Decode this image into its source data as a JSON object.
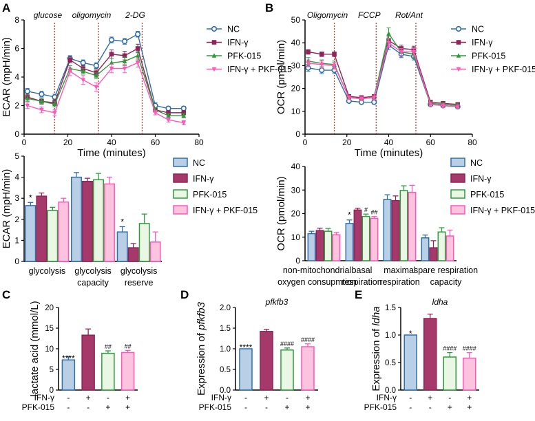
{
  "colors": {
    "nc_stroke": "#2f6ea8",
    "nc_fill": "#b8cfe6",
    "ifn_stroke": "#8e2457",
    "ifn_fill": "#a53a6a",
    "pfk_stroke": "#2d9a3c",
    "pfk_fill": "#e9f7e4",
    "combo_stroke": "#ff57b8",
    "combo_fill": "#fcc3de",
    "marker_line": "#c0392b",
    "axis": "#000000"
  },
  "chart_data": [
    {
      "id": "A_top",
      "panel_label": "A",
      "type": "line",
      "title": "",
      "xlabel": "Time (minutes)",
      "ylabel": "ECAR (mpH/min)",
      "xlim": [
        0,
        80
      ],
      "ylim": [
        0,
        8
      ],
      "xticks": [
        "0",
        "20",
        "40",
        "60",
        "80"
      ],
      "yticks": [
        "0",
        "2",
        "4",
        "6",
        "8"
      ],
      "injections": [
        {
          "x": 14,
          "label": "glucose"
        },
        {
          "x": 34,
          "label": "oligomycin"
        },
        {
          "x": 54,
          "label": "2-DG"
        }
      ],
      "x": [
        1.5,
        8,
        14,
        21,
        27,
        33,
        40,
        46,
        52,
        60,
        66,
        73
      ],
      "series": [
        {
          "name": "NC",
          "marker": "circle",
          "values": [
            3.0,
            2.8,
            2.6,
            5.3,
            5.0,
            4.8,
            6.6,
            6.5,
            7.0,
            2.0,
            1.8,
            1.8
          ],
          "errors": [
            0.2,
            0.2,
            0.2,
            0.2,
            0.2,
            0.2,
            0.2,
            0.2,
            0.2,
            0.2,
            0.15,
            0.15
          ]
        },
        {
          "name": "IFN-γ",
          "marker": "square",
          "values": [
            2.6,
            2.3,
            2.2,
            5.2,
            4.6,
            4.3,
            5.6,
            5.5,
            6.0,
            1.7,
            1.5,
            1.5
          ],
          "errors": [
            0.2,
            0.2,
            0.2,
            0.2,
            0.2,
            0.2,
            0.3,
            0.3,
            0.3,
            0.15,
            0.15,
            0.15
          ]
        },
        {
          "name": "PFK-015",
          "marker": "triangle",
          "values": [
            2.5,
            2.3,
            2.1,
            4.6,
            4.4,
            4.1,
            5.0,
            5.1,
            5.5,
            1.7,
            1.3,
            1.3
          ],
          "errors": [
            0.2,
            0.2,
            0.2,
            0.2,
            0.2,
            0.2,
            0.3,
            0.3,
            0.3,
            0.15,
            0.15,
            0.15
          ]
        },
        {
          "name": "IFN-γ + PKF-015",
          "marker": "triangle-down",
          "values": [
            2.0,
            1.7,
            1.5,
            4.4,
            3.8,
            3.3,
            4.6,
            4.6,
            5.0,
            1.5,
            1.0,
            0.8
          ],
          "errors": [
            0.2,
            0.2,
            0.2,
            0.3,
            0.3,
            0.3,
            0.3,
            0.3,
            0.3,
            0.15,
            0.15,
            0.15
          ]
        }
      ]
    },
    {
      "id": "B_top",
      "panel_label": "B",
      "type": "line",
      "title": "",
      "xlabel": "Time (minutes)",
      "ylabel": "OCR (pmol/min)",
      "xlim": [
        0,
        80
      ],
      "ylim": [
        0,
        50
      ],
      "xticks": [
        "0",
        "20",
        "40",
        "60",
        "80"
      ],
      "yticks": [
        "0",
        "10",
        "20",
        "30",
        "40",
        "50"
      ],
      "injections": [
        {
          "x": 14,
          "label": "Oligomycin"
        },
        {
          "x": 34,
          "label": "FCCP"
        },
        {
          "x": 53,
          "label": "Rot/Ant"
        }
      ],
      "x": [
        1.5,
        8,
        14,
        21,
        27,
        33,
        40,
        46,
        52,
        60,
        66,
        73
      ],
      "series": [
        {
          "name": "NC",
          "marker": "circle",
          "values": [
            29,
            28,
            28,
            14.5,
            14,
            14,
            39,
            35,
            34,
            13,
            12.5,
            12
          ],
          "errors": [
            1.5,
            1.5,
            1.5,
            0.8,
            0.8,
            0.8,
            2,
            1.5,
            1.5,
            0.8,
            0.8,
            0.8
          ]
        },
        {
          "name": "IFN-γ",
          "marker": "square",
          "values": [
            36,
            35,
            35,
            16.5,
            16,
            16.5,
            41,
            37.5,
            37,
            14,
            13.5,
            13
          ],
          "errors": [
            1,
            1,
            1,
            0.8,
            0.8,
            0.8,
            2,
            1.5,
            1.5,
            0.8,
            0.8,
            0.8
          ]
        },
        {
          "name": "PFK-015",
          "marker": "triangle",
          "values": [
            32,
            31,
            30.5,
            16,
            15.5,
            16,
            44,
            36,
            35,
            13.5,
            13,
            12.5
          ],
          "errors": [
            1.5,
            1.5,
            1.5,
            0.8,
            0.8,
            0.8,
            2.5,
            1.5,
            1.5,
            0.8,
            0.8,
            0.8
          ]
        },
        {
          "name": "IFN-γ + PKF-015",
          "marker": "triangle-down",
          "values": [
            31,
            30.5,
            30,
            16,
            15.5,
            16,
            40,
            36,
            36,
            13,
            12.5,
            12
          ],
          "errors": [
            1.5,
            1.5,
            1.5,
            0.8,
            0.8,
            0.8,
            2,
            1.5,
            1.5,
            0.8,
            0.8,
            0.8
          ]
        }
      ]
    },
    {
      "id": "A_bottom",
      "type": "bar",
      "title": "",
      "xlabel": "",
      "ylabel": "ECAR (mpH/min)",
      "ylim": [
        0,
        5
      ],
      "yticks": [
        "0",
        "1",
        "2",
        "3",
        "4",
        "5"
      ],
      "categories": [
        "glycolysis",
        "glycolysis\ncapacity",
        "glycolysis\nreserve"
      ],
      "series": [
        {
          "name": "NC",
          "values": [
            2.65,
            4.0,
            1.4
          ],
          "errors": [
            0.15,
            0.22,
            0.25
          ],
          "annotations": [
            "*",
            "",
            "*"
          ]
        },
        {
          "name": "IFN-γ",
          "values": [
            3.1,
            3.8,
            0.65
          ],
          "errors": [
            0.15,
            0.15,
            0.2
          ],
          "annotations": [
            "",
            "",
            ""
          ]
        },
        {
          "name": "PFK-015",
          "values": [
            2.42,
            3.88,
            1.8
          ],
          "errors": [
            0.15,
            0.3,
            0.45
          ],
          "annotations": [
            "",
            "",
            ""
          ]
        },
        {
          "name": "IFN-γ + PKF-015",
          "values": [
            2.82,
            3.68,
            0.92
          ],
          "errors": [
            0.18,
            0.32,
            0.48
          ],
          "annotations": [
            "",
            "",
            ""
          ]
        }
      ]
    },
    {
      "id": "B_bottom",
      "type": "bar",
      "title": "",
      "xlabel": "",
      "ylabel": "OCR (pmol/min)",
      "ylim": [
        0,
        40
      ],
      "yticks": [
        "0",
        "10",
        "20",
        "30",
        "40"
      ],
      "categories": [
        "non-mitochondrial\noxygen consupmtion",
        "basal\nrespiration",
        "maximal\nrespiration",
        "spare respiration\ncapacity"
      ],
      "series": [
        {
          "name": "NC",
          "values": [
            11.5,
            15.8,
            26,
            9.7
          ],
          "errors": [
            1,
            1.5,
            2,
            1.2
          ],
          "annotations": [
            "",
            "*",
            "",
            ""
          ]
        },
        {
          "name": "IFN-γ",
          "values": [
            12.8,
            21.5,
            25.5,
            5.5
          ],
          "errors": [
            1,
            0.8,
            2,
            3
          ],
          "annotations": [
            "",
            "",
            "",
            ""
          ]
        },
        {
          "name": "PFK-015",
          "values": [
            12.5,
            18.8,
            29.8,
            12.2
          ],
          "errors": [
            1.2,
            1,
            2,
            1.8
          ],
          "annotations": [
            "",
            "#",
            "",
            ""
          ]
        },
        {
          "name": "IFN-γ + PKF-015",
          "values": [
            11,
            18,
            29,
            10.5
          ],
          "errors": [
            1,
            0.8,
            3,
            2.5
          ],
          "annotations": [
            "",
            "##",
            "",
            ""
          ]
        }
      ]
    },
    {
      "id": "C",
      "panel_label": "C",
      "type": "bar",
      "title": "",
      "xlabel": "",
      "ylabel": "lactate acid (mmol/L)",
      "ylim": [
        0,
        20
      ],
      "yticks": [
        "0",
        "5",
        "10",
        "15",
        "20"
      ],
      "row_labels": [
        "IFN-γ",
        "PFK-015"
      ],
      "conditions": [
        [
          "-",
          "-"
        ],
        [
          "+",
          "-"
        ],
        [
          "-",
          "+"
        ],
        [
          "+",
          "+"
        ]
      ],
      "values": [
        7.3,
        13.3,
        8.9,
        9.1
      ],
      "errors": [
        0.8,
        1.5,
        0.6,
        0.5
      ],
      "annotations": [
        "****",
        "",
        "##",
        "##"
      ]
    },
    {
      "id": "D",
      "panel_label": "D",
      "type": "bar",
      "title": "pfkfb3",
      "xlabel": "",
      "ylabel": "Expression of pfkfb3",
      "ylim": [
        0,
        2.0
      ],
      "yticks": [
        "0.0",
        "0.5",
        "1.0",
        "1.5",
        "2.0"
      ],
      "row_labels": [
        "IFN-γ",
        "PFK-015"
      ],
      "conditions": [
        [
          "-",
          "-"
        ],
        [
          "+",
          "-"
        ],
        [
          "-",
          "+"
        ],
        [
          "+",
          "+"
        ]
      ],
      "values": [
        1.0,
        1.42,
        0.97,
        1.05
      ],
      "errors": [
        0.0,
        0.05,
        0.05,
        0.07
      ],
      "annotations": [
        "****",
        "",
        "####",
        "####"
      ]
    },
    {
      "id": "E",
      "panel_label": "E",
      "type": "bar",
      "title": "ldha",
      "xlabel": "",
      "ylabel": "Expression of ldha",
      "ylim": [
        0,
        1.5
      ],
      "yticks": [
        "0.0",
        "0.5",
        "1.0",
        "1.5"
      ],
      "row_labels": [
        "IFN-γ",
        "PFK-015"
      ],
      "conditions": [
        [
          "-",
          "-"
        ],
        [
          "+",
          "-"
        ],
        [
          "-",
          "+"
        ],
        [
          "+",
          "+"
        ]
      ],
      "values": [
        1.0,
        1.3,
        0.6,
        0.58
      ],
      "errors": [
        0.0,
        0.08,
        0.08,
        0.1
      ],
      "annotations": [
        "*",
        "",
        "####",
        "####"
      ]
    }
  ]
}
